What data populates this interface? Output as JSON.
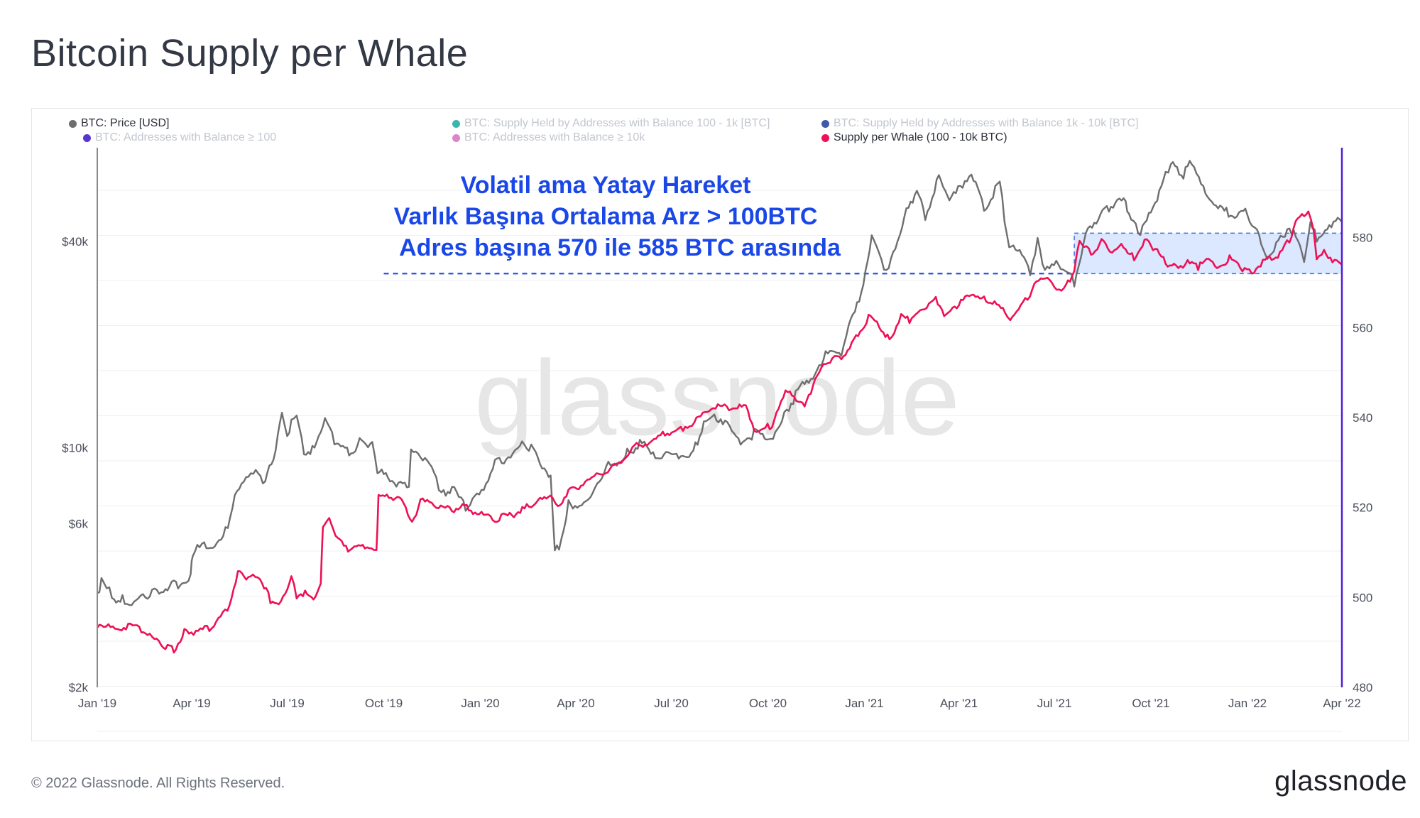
{
  "title": "Bitcoin Supply per Whale",
  "footer": "© 2022 Glassnode. All Rights Reserved.",
  "logo": "glassnode",
  "watermark": "glassnode",
  "colors": {
    "price": "#6e6e6e",
    "whale": "#ee1155",
    "axis_right": "#4f1fd6",
    "annotation": "#1a47e8",
    "band_fill": "#cfe0ff",
    "band_stroke": "#3d6fe0"
  },
  "legend": [
    {
      "label": "BTC: Price [USD]",
      "color": "#6e6e6e",
      "active": true
    },
    {
      "label": "BTC: Supply Held by Addresses with Balance 100 - 1k [BTC]",
      "color": "#1aa8a0",
      "active": false
    },
    {
      "label": "BTC: Supply Held by Addresses with Balance 1k - 10k [BTC]",
      "color": "#203c9a",
      "active": false
    },
    {
      "label": "BTC: Addresses with Balance ≥ 100",
      "color": "#3a12c8",
      "active": false
    },
    {
      "label": "BTC: Addresses with Balance ≥ 10k",
      "color": "#d86fc0",
      "active": false
    },
    {
      "label": "Supply per Whale (100 - 10k BTC)",
      "color": "#ee1155",
      "active": true
    }
  ],
  "annotation": {
    "line1": "Volatil ama Yatay Hareket",
    "line2": "Varlık Başına Ortalama Arz > 100BTC",
    "line3": "Adres başına 570 ile 585 BTC arasında"
  },
  "chart_data": {
    "type": "line",
    "x_ticks": [
      "Jan '19",
      "Apr '19",
      "Jul '19",
      "Oct '19",
      "Jan '20",
      "Apr '20",
      "Jul '20",
      "Oct '20",
      "Jan '21",
      "Apr '21",
      "Jul '21",
      "Oct '21",
      "Jan '22",
      "Apr '22"
    ],
    "y_left": {
      "scale": "log",
      "ticks": [
        "$2k",
        "$6k",
        "$10k",
        "$40k"
      ],
      "tick_values": [
        2000,
        6000,
        10000,
        40000
      ],
      "range": [
        2000,
        75000
      ]
    },
    "y_right": {
      "scale": "linear",
      "ticks": [
        "480",
        "500",
        "520",
        "540",
        "560",
        "580"
      ],
      "tick_values": [
        480,
        500,
        520,
        540,
        560,
        580
      ],
      "range": [
        480,
        600
      ]
    },
    "band": {
      "from_date": "2021-07-20",
      "to_date": "2022-04-01",
      "y_low": 572,
      "y_high": 581
    },
    "dashed_line": {
      "from_date": "2019-10-01",
      "to_date": "2021-07-20",
      "y": 572
    },
    "series": [
      {
        "name": "BTC: Price [USD]",
        "axis": "left",
        "points": [
          [
            "2019-01-01",
            3700
          ],
          [
            "2019-01-05",
            4000
          ],
          [
            "2019-01-10",
            3900
          ],
          [
            "2019-01-15",
            3600
          ],
          [
            "2019-01-25",
            3550
          ],
          [
            "2019-02-05",
            3450
          ],
          [
            "2019-02-20",
            3700
          ],
          [
            "2019-03-01",
            3800
          ],
          [
            "2019-03-15",
            3900
          ],
          [
            "2019-03-31",
            4100
          ],
          [
            "2019-04-02",
            4900
          ],
          [
            "2019-04-15",
            5100
          ],
          [
            "2019-05-01",
            5300
          ],
          [
            "2019-05-12",
            7000
          ],
          [
            "2019-05-25",
            8200
          ],
          [
            "2019-06-01",
            8600
          ],
          [
            "2019-06-10",
            7800
          ],
          [
            "2019-06-20",
            9600
          ],
          [
            "2019-06-26",
            12800
          ],
          [
            "2019-07-01",
            10700
          ],
          [
            "2019-07-05",
            11800
          ],
          [
            "2019-07-10",
            12000
          ],
          [
            "2019-07-17",
            9500
          ],
          [
            "2019-07-25",
            9800
          ],
          [
            "2019-08-06",
            11800
          ],
          [
            "2019-08-15",
            10200
          ],
          [
            "2019-08-29",
            9500
          ],
          [
            "2019-09-10",
            10300
          ],
          [
            "2019-09-20",
            10100
          ],
          [
            "2019-09-25",
            8400
          ],
          [
            "2019-10-05",
            8100
          ],
          [
            "2019-10-25",
            7400
          ],
          [
            "2019-10-27",
            9500
          ],
          [
            "2019-11-05",
            9300
          ],
          [
            "2019-11-20",
            8100
          ],
          [
            "2019-11-25",
            7100
          ],
          [
            "2019-12-05",
            7500
          ],
          [
            "2019-12-18",
            6600
          ],
          [
            "2019-12-31",
            7200
          ],
          [
            "2020-01-15",
            8800
          ],
          [
            "2020-02-01",
            9400
          ],
          [
            "2020-02-12",
            10300
          ],
          [
            "2020-02-25",
            9200
          ],
          [
            "2020-03-08",
            8000
          ],
          [
            "2020-03-12",
            4900
          ],
          [
            "2020-03-16",
            5000
          ],
          [
            "2020-03-25",
            6700
          ],
          [
            "2020-04-15",
            6900
          ],
          [
            "2020-04-30",
            8700
          ],
          [
            "2020-05-10",
            8800
          ],
          [
            "2020-05-20",
            9500
          ],
          [
            "2020-06-01",
            10100
          ],
          [
            "2020-06-20",
            9300
          ],
          [
            "2020-07-10",
            9300
          ],
          [
            "2020-07-22",
            9500
          ],
          [
            "2020-08-01",
            11600
          ],
          [
            "2020-08-17",
            12100
          ],
          [
            "2020-09-05",
            10200
          ],
          [
            "2020-09-20",
            10900
          ],
          [
            "2020-10-08",
            10600
          ],
          [
            "2020-10-21",
            12900
          ],
          [
            "2020-11-05",
            15500
          ],
          [
            "2020-11-15",
            16000
          ],
          [
            "2020-11-25",
            18500
          ],
          [
            "2020-12-10",
            18300
          ],
          [
            "2020-12-17",
            22800
          ],
          [
            "2020-12-31",
            29000
          ],
          [
            "2021-01-08",
            40000
          ],
          [
            "2021-01-15",
            37000
          ],
          [
            "2021-01-22",
            32000
          ],
          [
            "2021-02-08",
            46000
          ],
          [
            "2021-02-20",
            56000
          ],
          [
            "2021-02-28",
            46000
          ],
          [
            "2021-03-13",
            61000
          ],
          [
            "2021-03-25",
            52000
          ],
          [
            "2021-04-13",
            63500
          ],
          [
            "2021-04-25",
            49000
          ],
          [
            "2021-05-10",
            58000
          ],
          [
            "2021-05-19",
            37000
          ],
          [
            "2021-05-25",
            38000
          ],
          [
            "2021-06-08",
            32000
          ],
          [
            "2021-06-15",
            40000
          ],
          [
            "2021-06-22",
            32000
          ],
          [
            "2021-07-05",
            34000
          ],
          [
            "2021-07-20",
            29800
          ],
          [
            "2021-07-31",
            41500
          ],
          [
            "2021-08-14",
            47000
          ],
          [
            "2021-08-22",
            49500
          ],
          [
            "2021-09-07",
            52500
          ],
          [
            "2021-09-10",
            46500
          ],
          [
            "2021-09-21",
            41000
          ],
          [
            "2021-10-01",
            48000
          ],
          [
            "2021-10-15",
            61000
          ],
          [
            "2021-10-20",
            66000
          ],
          [
            "2021-11-01",
            61000
          ],
          [
            "2021-11-09",
            68000
          ],
          [
            "2021-11-20",
            57000
          ],
          [
            "2021-12-04",
            49000
          ],
          [
            "2021-12-20",
            47000
          ],
          [
            "2022-01-01",
            47500
          ],
          [
            "2022-01-10",
            42000
          ],
          [
            "2022-01-22",
            35000
          ],
          [
            "2022-02-10",
            44000
          ],
          [
            "2022-02-24",
            35000
          ],
          [
            "2022-03-02",
            44000
          ],
          [
            "2022-03-10",
            39000
          ],
          [
            "2022-03-28",
            47000
          ],
          [
            "2022-04-01",
            45500
          ]
        ]
      },
      {
        "name": "Supply per Whale (100 - 10k BTC)",
        "axis": "right",
        "points": [
          [
            "2019-01-01",
            493
          ],
          [
            "2019-01-20",
            493
          ],
          [
            "2019-02-10",
            493
          ],
          [
            "2019-02-20",
            491
          ],
          [
            "2019-03-05",
            489
          ],
          [
            "2019-03-15",
            488
          ],
          [
            "2019-03-25",
            492
          ],
          [
            "2019-04-05",
            492
          ],
          [
            "2019-04-20",
            493
          ],
          [
            "2019-05-05",
            497
          ],
          [
            "2019-05-15",
            505
          ],
          [
            "2019-05-25",
            504
          ],
          [
            "2019-06-05",
            504
          ],
          [
            "2019-06-15",
            499
          ],
          [
            "2019-06-25",
            498
          ],
          [
            "2019-07-05",
            504
          ],
          [
            "2019-07-10",
            500
          ],
          [
            "2019-07-20",
            501
          ],
          [
            "2019-07-28",
            499
          ],
          [
            "2019-08-02",
            502
          ],
          [
            "2019-08-04",
            516
          ],
          [
            "2019-08-10",
            517
          ],
          [
            "2019-08-20",
            512
          ],
          [
            "2019-08-28",
            510
          ],
          [
            "2019-09-15",
            511
          ],
          [
            "2019-09-24",
            510
          ],
          [
            "2019-09-26",
            522
          ],
          [
            "2019-10-10",
            522
          ],
          [
            "2019-10-20",
            521
          ],
          [
            "2019-10-28",
            516
          ],
          [
            "2019-11-05",
            521
          ],
          [
            "2019-11-20",
            520
          ],
          [
            "2019-12-05",
            519
          ],
          [
            "2019-12-15",
            520
          ],
          [
            "2019-12-31",
            518
          ],
          [
            "2020-01-15",
            517
          ],
          [
            "2020-01-31",
            518
          ],
          [
            "2020-02-10",
            519
          ],
          [
            "2020-02-25",
            521
          ],
          [
            "2020-03-10",
            522
          ],
          [
            "2020-03-15",
            520
          ],
          [
            "2020-03-25",
            523
          ],
          [
            "2020-04-10",
            525
          ],
          [
            "2020-04-25",
            527
          ],
          [
            "2020-05-10",
            529
          ],
          [
            "2020-05-25",
            533
          ],
          [
            "2020-06-10",
            534
          ],
          [
            "2020-06-25",
            536
          ],
          [
            "2020-07-10",
            537
          ],
          [
            "2020-07-25",
            539
          ],
          [
            "2020-08-10",
            542
          ],
          [
            "2020-08-25",
            542
          ],
          [
            "2020-09-10",
            542
          ],
          [
            "2020-09-20",
            536
          ],
          [
            "2020-10-05",
            538
          ],
          [
            "2020-10-20",
            546
          ],
          [
            "2020-11-05",
            542
          ],
          [
            "2020-11-15",
            548
          ],
          [
            "2020-11-25",
            552
          ],
          [
            "2020-12-10",
            553
          ],
          [
            "2020-12-20",
            556
          ],
          [
            "2021-01-05",
            562
          ],
          [
            "2021-01-15",
            560
          ],
          [
            "2021-01-25",
            557
          ],
          [
            "2021-02-05",
            562
          ],
          [
            "2021-02-15",
            561
          ],
          [
            "2021-02-25",
            564
          ],
          [
            "2021-03-10",
            566
          ],
          [
            "2021-03-20",
            562
          ],
          [
            "2021-04-01",
            565
          ],
          [
            "2021-04-15",
            567
          ],
          [
            "2021-04-25",
            566
          ],
          [
            "2021-05-05",
            565
          ],
          [
            "2021-05-15",
            563
          ],
          [
            "2021-05-20",
            562
          ],
          [
            "2021-06-01",
            565
          ],
          [
            "2021-06-10",
            568
          ],
          [
            "2021-06-20",
            571
          ],
          [
            "2021-07-01",
            569
          ],
          [
            "2021-07-10",
            568
          ],
          [
            "2021-07-20",
            572
          ],
          [
            "2021-07-25",
            579
          ],
          [
            "2021-08-05",
            576
          ],
          [
            "2021-08-15",
            579
          ],
          [
            "2021-08-25",
            576
          ],
          [
            "2021-09-05",
            578
          ],
          [
            "2021-09-15",
            575
          ],
          [
            "2021-09-25",
            579
          ],
          [
            "2021-10-05",
            577
          ],
          [
            "2021-10-15",
            574
          ],
          [
            "2021-10-25",
            573
          ],
          [
            "2021-11-05",
            574
          ],
          [
            "2021-11-15",
            573
          ],
          [
            "2021-11-25",
            575
          ],
          [
            "2021-12-05",
            573
          ],
          [
            "2021-12-15",
            575
          ],
          [
            "2021-12-25",
            573
          ],
          [
            "2022-01-05",
            572
          ],
          [
            "2022-01-20",
            575
          ],
          [
            "2022-02-01",
            576
          ],
          [
            "2022-02-10",
            579
          ],
          [
            "2022-02-20",
            585
          ],
          [
            "2022-02-28",
            585
          ],
          [
            "2022-03-05",
            581
          ],
          [
            "2022-03-08",
            575
          ],
          [
            "2022-03-15",
            577
          ],
          [
            "2022-03-25",
            574
          ],
          [
            "2022-04-01",
            574
          ]
        ]
      }
    ]
  }
}
